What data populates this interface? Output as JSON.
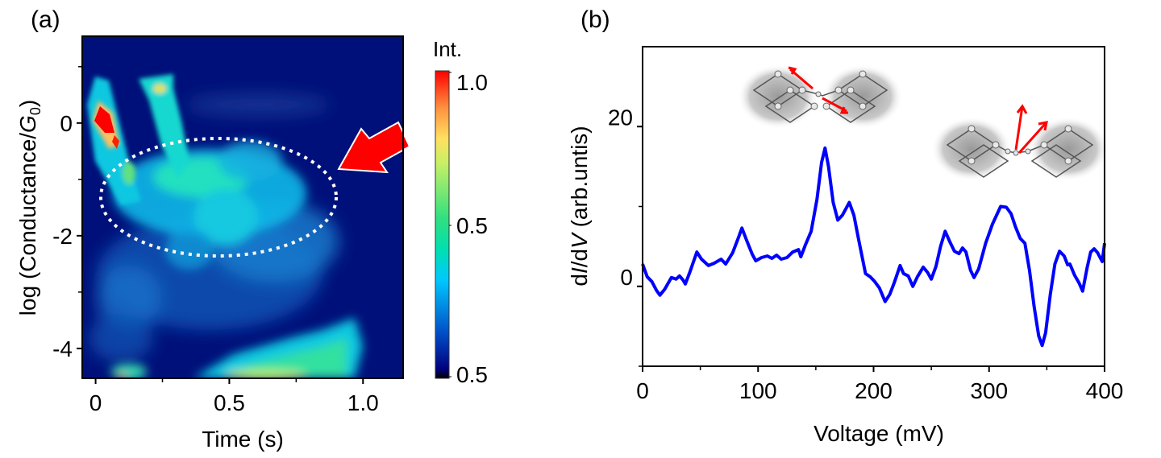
{
  "figure": {
    "panel_labels": [
      "(a)",
      "(b)"
    ]
  },
  "chart_data": [
    {
      "panel": "(a)",
      "type": "heatmap",
      "title": "",
      "xlabel": "Time (s)",
      "ylabel_prefix": "log (Conductance/",
      "ylabel_symbol": "G",
      "ylabel_subscript": "0",
      "ylabel_suffix": ")",
      "xlim": [
        -0.05,
        1.15
      ],
      "ylim": [
        -4.53,
        1.54
      ],
      "xticks": [
        0,
        0.5,
        1.0
      ],
      "xtick_labels": [
        "0",
        "0.5",
        "1.0"
      ],
      "xminor_ticks": [
        0.25,
        0.75
      ],
      "yticks": [
        0,
        -2,
        -4
      ],
      "ytick_labels": [
        "0",
        "-2",
        "-4"
      ],
      "yminor_ticks": [
        1,
        -1,
        -3
      ],
      "colorbar": {
        "title": "Int.",
        "tick_labels": [
          "1.0",
          "0.5",
          "0.5"
        ],
        "colormap": "jet",
        "colors": [
          "#000000",
          "#00007f",
          "#0050c8",
          "#00c8ff",
          "#00e0b0",
          "#30e080",
          "#c8f064",
          "#ffe060",
          "#ff9040",
          "#ff0000"
        ]
      },
      "background_value": 0.0,
      "features": [
        {
          "name": "high-conductance-spike",
          "time": [
            0.0,
            0.08
          ],
          "logG": [
            -0.7,
            0.3
          ],
          "intensity": 1.0
        },
        {
          "name": "upper-left-band",
          "time": [
            -0.02,
            0.12
          ],
          "logG": [
            -1.6,
            1.0
          ],
          "intensity": 0.45
        },
        {
          "name": "early-plume",
          "time": [
            0.15,
            0.28
          ],
          "logG": [
            -1.2,
            0.9
          ],
          "intensity": 0.45
        },
        {
          "name": "plateau-cluster",
          "time": [
            0.2,
            0.75
          ],
          "logG": [
            -2.3,
            -0.4
          ],
          "intensity": 0.4
        },
        {
          "name": "plateau-core",
          "time": [
            0.3,
            0.6
          ],
          "logG": [
            -1.6,
            -0.8
          ],
          "intensity": 0.5
        },
        {
          "name": "faint-upper-streak",
          "time": [
            0.3,
            0.8
          ],
          "logG": [
            0.2,
            0.5
          ],
          "intensity": 0.12
        },
        {
          "name": "mid-scatter",
          "time": [
            0.0,
            0.85
          ],
          "logG": [
            -3.8,
            -2.0
          ],
          "intensity": 0.2
        },
        {
          "name": "low-conductance-band",
          "time": [
            0.3,
            0.95
          ],
          "logG": [
            -4.53,
            -3.7
          ],
          "intensity": 0.5
        },
        {
          "name": "low-left-spot",
          "time": [
            0.08,
            0.2
          ],
          "logG": [
            -4.53,
            -4.2
          ],
          "intensity": 0.7
        }
      ],
      "annotations": [
        {
          "type": "dotted-ellipse",
          "label": "plateau-region",
          "center": [
            0.44,
            -1.3
          ],
          "half_width_time": 0.44,
          "half_height_logG": 0.98,
          "color": "#ffffff"
        },
        {
          "type": "arrow",
          "label": "pointer-arrow",
          "color": "#ff0000",
          "points_to": [
            0.82,
            -0.8
          ]
        }
      ]
    },
    {
      "panel": "(b)",
      "type": "line",
      "title": "",
      "xlabel": "Voltage (mV)",
      "ylabel_prefix": "d",
      "ylabel_italic1": "I",
      "ylabel_mid": "/d",
      "ylabel_italic2": "V",
      "ylabel_suffix": " (arb.untis)",
      "xlim": [
        0,
        400
      ],
      "ylim": [
        -10,
        30
      ],
      "xticks": [
        0,
        100,
        200,
        300,
        400
      ],
      "xtick_labels": [
        "0",
        "100",
        "200",
        "300",
        "400"
      ],
      "xminor_ticks": [
        50,
        150,
        250,
        350
      ],
      "yticks": [
        20,
        0
      ],
      "ytick_labels": [
        "20",
        "0"
      ],
      "yminor_ticks": [
        10,
        -10
      ],
      "grid": false,
      "series": [
        {
          "name": "dI/dV",
          "color": "#0000ff",
          "x": [
            0,
            4,
            8,
            12,
            15,
            19,
            25,
            29,
            32,
            35,
            37,
            41,
            47,
            51,
            57,
            62,
            68,
            72,
            78,
            83,
            86,
            90,
            95,
            98,
            103,
            108,
            112,
            116,
            120,
            125,
            130,
            135,
            137,
            141,
            146,
            151,
            155,
            158,
            161,
            165,
            169,
            173,
            179,
            183,
            187,
            193,
            197,
            201,
            205,
            210,
            214,
            218,
            223,
            226,
            230,
            234,
            238,
            243,
            247,
            250,
            254,
            258,
            262,
            266,
            270,
            274,
            277,
            280,
            284,
            287,
            291,
            297,
            303,
            310,
            315,
            319,
            323,
            327,
            331,
            335,
            339,
            343,
            346,
            349,
            353,
            357,
            361,
            365,
            368,
            370,
            374,
            378,
            381,
            385,
            388,
            391,
            394,
            398,
            400
          ],
          "y": [
            2.8,
            1.2,
            0.6,
            -0.5,
            -1.1,
            -0.4,
            1.1,
            0.9,
            1.3,
            0.8,
            0.3,
            1.8,
            4.3,
            3.4,
            2.6,
            2.9,
            3.4,
            2.8,
            4.2,
            6.1,
            7.3,
            5.8,
            4.0,
            3.2,
            3.6,
            3.8,
            3.5,
            3.9,
            3.4,
            3.6,
            4.3,
            4.6,
            3.7,
            5.2,
            6.9,
            10.9,
            15.5,
            17.3,
            15.0,
            10.5,
            8.3,
            8.9,
            10.5,
            8.9,
            5.9,
            1.6,
            1.2,
            0.6,
            -0.2,
            -1.9,
            -1.0,
            0.5,
            2.6,
            1.6,
            1.3,
            0.0,
            1.2,
            2.4,
            1.7,
            0.9,
            2.5,
            5.0,
            6.9,
            5.6,
            4.4,
            4.1,
            4.8,
            4.3,
            2.0,
            1.1,
            2.2,
            5.4,
            7.8,
            10.0,
            9.9,
            9.1,
            7.4,
            6.0,
            5.4,
            2.0,
            -2.5,
            -6.2,
            -7.4,
            -5.8,
            -1.0,
            2.8,
            4.4,
            3.8,
            2.7,
            2.8,
            1.4,
            0.4,
            -0.6,
            2.4,
            4.3,
            4.7,
            4.2,
            3.1,
            5.4
          ]
        }
      ],
      "insets": [
        {
          "name": "junction-stretch-mode",
          "description": "molecular junction between metal electrodes, red arrows show stretching vibration along the bridge",
          "arrow_color": "#ff0000"
        },
        {
          "name": "junction-bend-mode",
          "description": "molecular junction between metal electrodes, red arrows show bending vibration perpendicular to the bridge",
          "arrow_color": "#ff0000"
        }
      ]
    }
  ]
}
